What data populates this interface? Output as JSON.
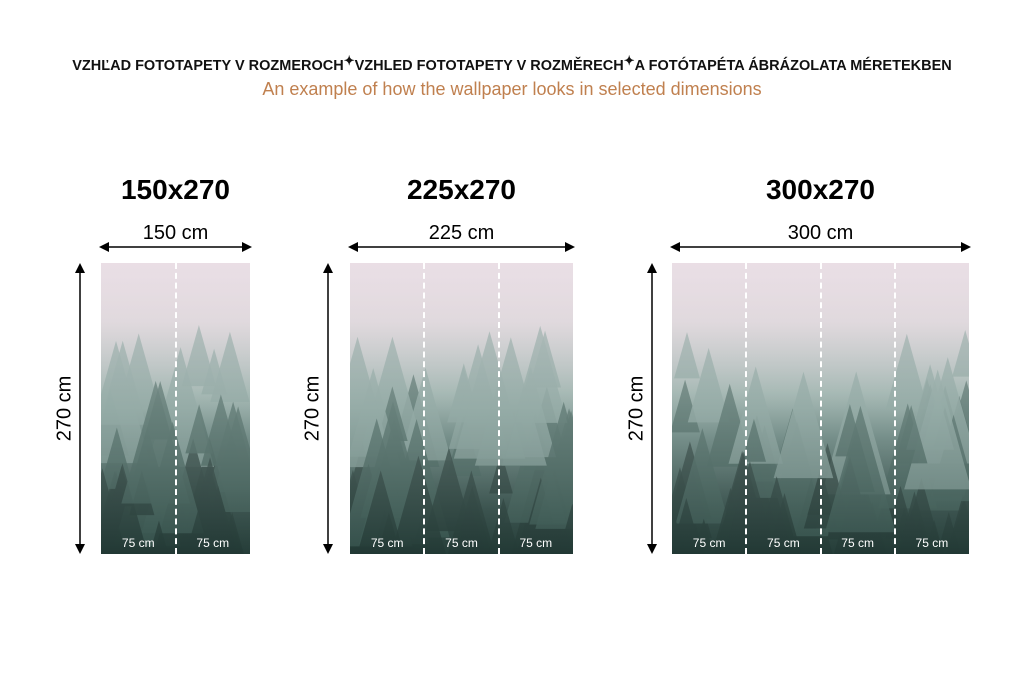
{
  "header": {
    "title_parts": [
      "VZHĽAD FOTOTAPETY V ROZMEROCH",
      "VZHLED FOTOTAPETY V ROZMĚRECH",
      "A FOTÓTAPÉTA ÁBRÁZOLATA MÉRETEKBEN"
    ],
    "separator_icon": "sparkle-icon",
    "subtitle": "An example of how the wallpaper looks in selected dimensions",
    "subtitle_color": "#c0804f"
  },
  "panels": [
    {
      "size": "150x270",
      "width_label": "150 cm",
      "height_label": "270 cm",
      "strips": [
        "75 cm",
        "75 cm"
      ]
    },
    {
      "size": "225x270",
      "width_label": "225 cm",
      "height_label": "270 cm",
      "strips": [
        "75 cm",
        "75 cm",
        "75 cm"
      ]
    },
    {
      "size": "300x270",
      "width_label": "300 cm",
      "height_label": "270 cm",
      "strips": [
        "75 cm",
        "75 cm",
        "75 cm",
        "75 cm"
      ]
    }
  ]
}
